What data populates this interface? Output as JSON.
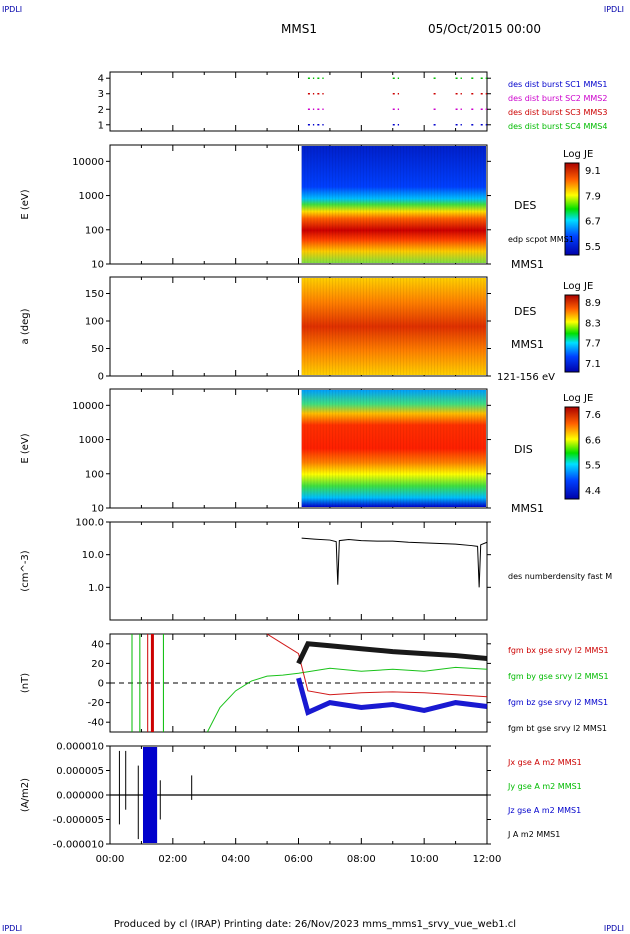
{
  "corner_labels": [
    "IPDLI",
    "IPDLI",
    "IPDLI",
    "IPDLI"
  ],
  "header": {
    "title": "MMS1",
    "date": "05/Oct/2015 00:00"
  },
  "footer": {
    "text": "Produced by cl (IRAP)   Printing date: 26/Nov/2023   mms_mms1_srvy_vue_web1.cl"
  },
  "colors": {
    "mms1": "#0000cc",
    "mms2": "#cc00cc",
    "mms3": "#cc0000",
    "mms4": "#00bb00",
    "black": "#000000"
  },
  "chart_data": [
    {
      "type": "scatter",
      "panel": "burst-availability",
      "yticks": [
        "1",
        "2",
        "3",
        "4"
      ],
      "ylim": [
        0.6,
        4.4
      ],
      "legend": [
        {
          "name": "des dist burst SC1 MMS1",
          "color": "#0000cc"
        },
        {
          "name": "des dist burst SC2 MMS2",
          "color": "#cc00cc"
        },
        {
          "name": "des dist burst SC3 MMS3",
          "color": "#cc0000"
        },
        {
          "name": "des dist burst SC4 MMS4",
          "color": "#00bb00"
        }
      ],
      "segments_hours": [
        [
          6.3,
          6.5
        ],
        [
          6.6,
          6.8
        ],
        [
          9.0,
          9.2
        ],
        [
          10.3,
          10.4
        ],
        [
          11.0,
          11.2
        ],
        [
          11.5,
          11.6
        ],
        [
          11.8,
          12.0
        ]
      ]
    },
    {
      "type": "heatmap",
      "panel": "des-energy-spectrogram",
      "ylabel": "E (eV)",
      "yscale": "log",
      "ylim": [
        10,
        30000
      ],
      "yticks": [
        "10",
        "100",
        "1000",
        "10000"
      ],
      "data_start_hour": 6.1,
      "label": "DES",
      "sublabel": "edp scpot MMS1",
      "sc_label": "MMS1",
      "colorbar": {
        "title": "Log JE",
        "ticks": [
          "9.1",
          "7.9",
          "6.7",
          "5.5"
        ]
      }
    },
    {
      "type": "heatmap",
      "panel": "des-pitch-angle",
      "ylabel": "a (deg)",
      "ylim": [
        0,
        180
      ],
      "yticks": [
        "0",
        "50",
        "100",
        "150"
      ],
      "data_start_hour": 6.1,
      "label": "DES",
      "sc_label": "MMS1",
      "energy_range": "121-156 eV",
      "colorbar": {
        "title": "Log JE",
        "ticks": [
          "8.9",
          "8.3",
          "7.7",
          "7.1"
        ]
      }
    },
    {
      "type": "heatmap",
      "panel": "dis-energy-spectrogram",
      "ylabel": "E (eV)",
      "yscale": "log",
      "ylim": [
        10,
        30000
      ],
      "yticks": [
        "10",
        "100",
        "1000",
        "10000"
      ],
      "data_start_hour": 6.1,
      "label": "DIS",
      "sc_label": "MMS1",
      "colorbar": {
        "title": "Log JE",
        "ticks": [
          "7.6",
          "6.6",
          "5.5",
          "4.4"
        ]
      }
    },
    {
      "type": "line",
      "panel": "number-density",
      "ylabel": "(cm^-3)",
      "yscale": "log",
      "ylim": [
        0.1,
        100
      ],
      "yticks": [
        "1.0",
        "10.0",
        "100.0"
      ],
      "legend": [
        {
          "name": "des numberdensity fast M",
          "color": "#000000"
        }
      ],
      "x_hours": [
        6.1,
        6.5,
        7.0,
        7.2,
        7.25,
        7.3,
        7.6,
        8.0,
        8.5,
        9.0,
        9.5,
        10.0,
        10.5,
        11.0,
        11.5,
        11.7,
        11.75,
        11.8,
        12.0
      ],
      "values": [
        32,
        30,
        28,
        25,
        1.2,
        27,
        29,
        27,
        26,
        26,
        24,
        23,
        22,
        21,
        19,
        18,
        1.0,
        20,
        24
      ]
    },
    {
      "type": "line",
      "panel": "fgm-magnetic-field",
      "ylabel": "(nT)",
      "ylim": [
        -50,
        50
      ],
      "yticks": [
        "-40",
        "-20",
        "0",
        "20",
        "40"
      ],
      "legend": [
        {
          "name": "fgm bx gse srvy l2 MMS1",
          "color": "#cc0000"
        },
        {
          "name": "fgm by gse srvy l2 MMS1",
          "color": "#00bb00"
        },
        {
          "name": "fgm bz gse srvy l2 MMS1",
          "color": "#0000cc"
        },
        {
          "name": "fgm bt gse srvy l2 MMS1",
          "color": "#000000"
        }
      ],
      "series": [
        {
          "name": "fgm by gse srvy l2 MMS1",
          "x_hours": [
            3.1,
            3.5,
            4.0,
            4.5,
            5.0,
            5.5,
            6.0,
            7.0,
            8.0,
            9.0,
            10.0,
            11.0,
            12.0
          ],
          "values": [
            -50,
            -25,
            -8,
            2,
            7,
            8,
            10,
            15,
            12,
            14,
            12,
            16,
            14
          ]
        },
        {
          "name": "fgm bx gse srvy l2 MMS1",
          "x_hours": [
            5.0,
            5.5,
            6.0,
            6.3,
            7.0,
            8.0,
            9.0,
            10.0,
            11.0,
            12.0
          ],
          "values": [
            50,
            40,
            30,
            -8,
            -12,
            -10,
            -9,
            -10,
            -12,
            -14
          ]
        },
        {
          "name": "fgm bz gse srvy l2 MMS1",
          "x_hours": [
            6.0,
            6.3,
            7.0,
            8.0,
            9.0,
            10.0,
            11.0,
            12.0
          ],
          "values": [
            5,
            -30,
            -20,
            -25,
            -22,
            -28,
            -20,
            -24
          ]
        },
        {
          "name": "fgm bt gse srvy l2 MMS1",
          "x_hours": [
            6.0,
            6.3,
            7.0,
            8.0,
            9.0,
            10.0,
            11.0,
            12.0
          ],
          "values": [
            20,
            40,
            38,
            35,
            32,
            30,
            28,
            25
          ]
        }
      ]
    },
    {
      "type": "line",
      "panel": "current-density",
      "ylabel": "(A/m2)",
      "ylim": [
        -1e-05,
        1e-05
      ],
      "yticks": [
        "-0.000010",
        "-0.000005",
        "0.000000",
        "0.000005",
        "0.000010"
      ],
      "legend": [
        {
          "name": "Jx gse A m2 MMS1",
          "color": "#cc0000"
        },
        {
          "name": "Jy gse A m2 MMS1",
          "color": "#00bb00"
        },
        {
          "name": "Jz gse A m2 MMS1",
          "color": "#0000cc"
        },
        {
          "name": "J A m2 MMS1",
          "color": "#000000"
        }
      ],
      "xticks": [
        "00:00",
        "02:00",
        "04:00",
        "06:00",
        "08:00",
        "10:00",
        "12:00"
      ]
    }
  ]
}
